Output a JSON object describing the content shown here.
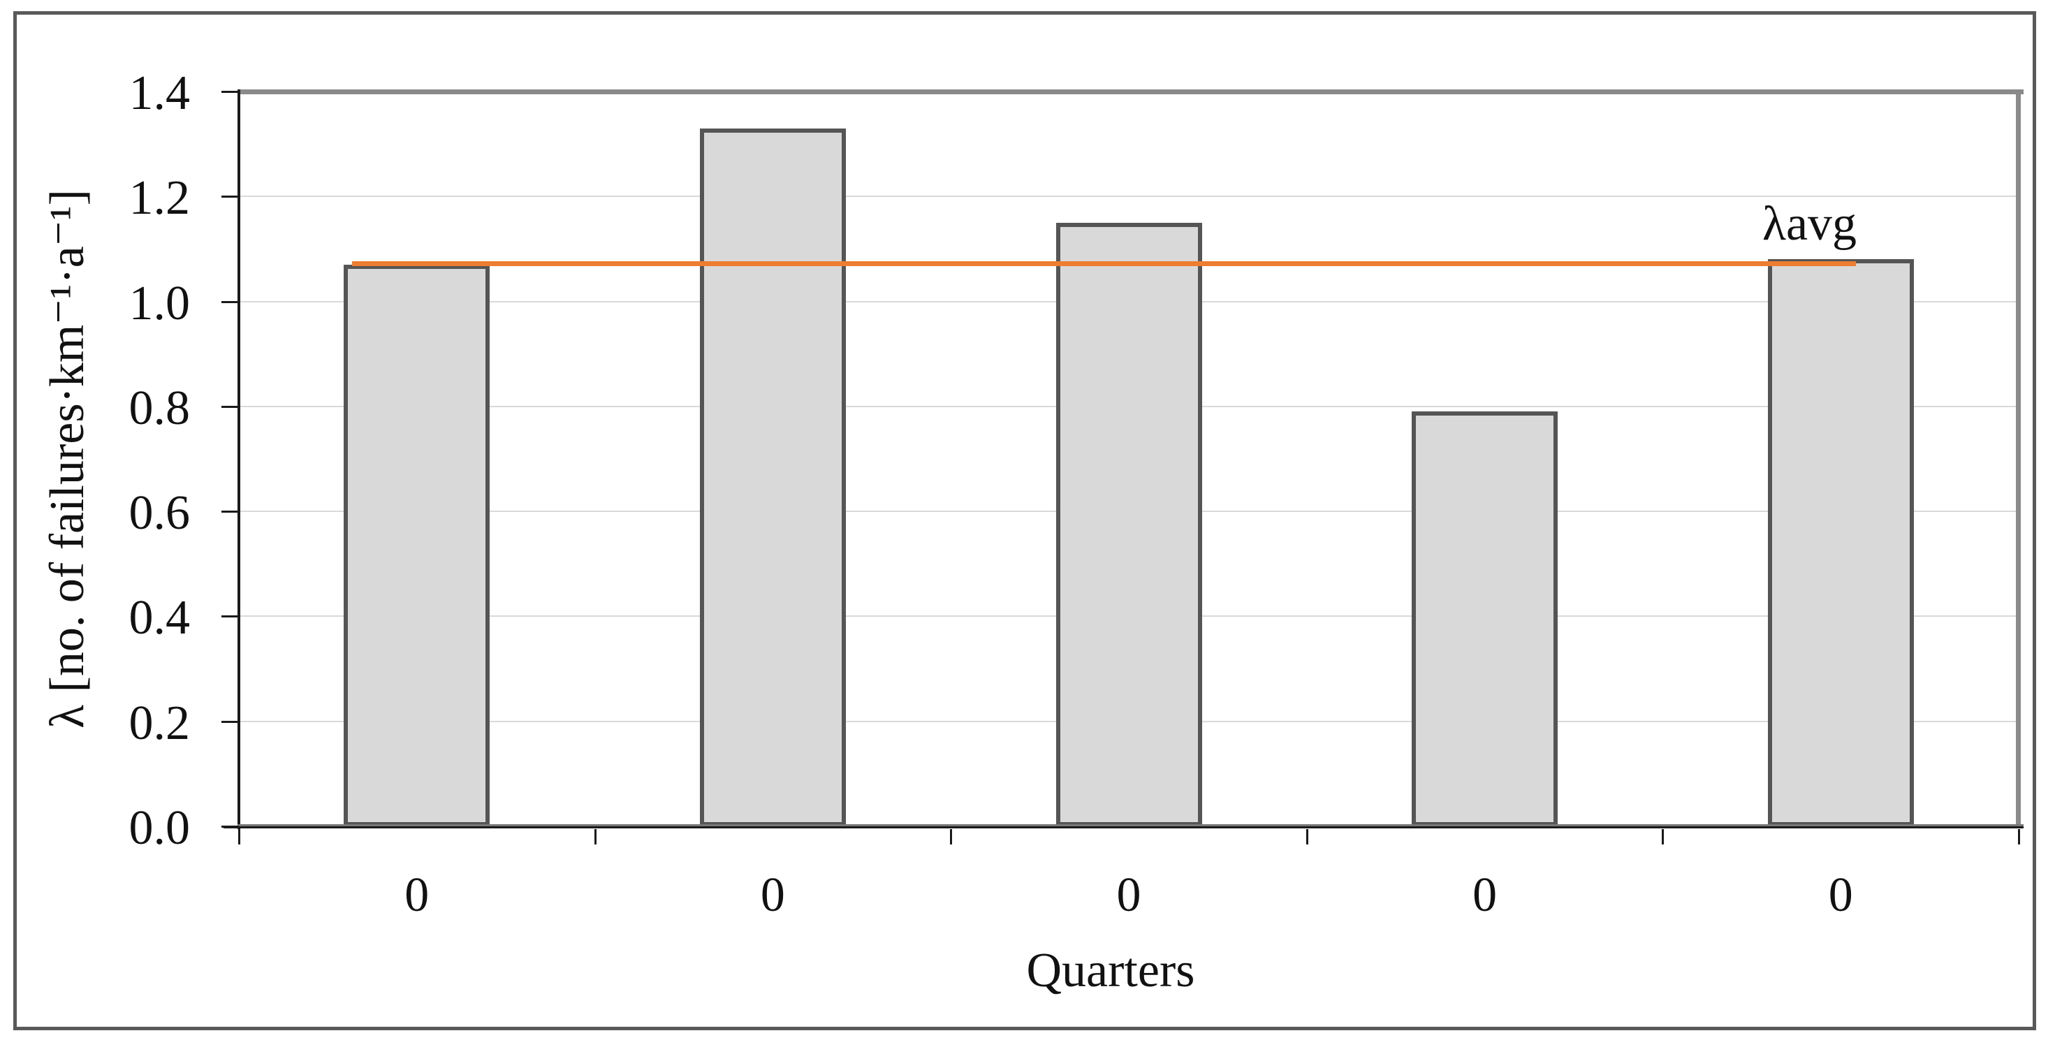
{
  "figure": {
    "background": "#ffffff",
    "outer_border_color": "#595959",
    "plot_border_color": "#8a8a8a",
    "axis_color": "#1a1a1a",
    "gridline_color": "#d9d9d9"
  },
  "chart_data": {
    "type": "bar",
    "title": "",
    "xlabel": "Quarters",
    "ylabel": "λ [no. of failures·km⁻¹·a⁻¹]",
    "categories": [
      "0",
      "0",
      "0",
      "0",
      "0"
    ],
    "values": [
      1.07,
      1.33,
      1.15,
      0.79,
      1.08
    ],
    "ylim": [
      0,
      1.4
    ],
    "ytick_step": 0.2,
    "ytick_labels": [
      "0.0",
      "0.2",
      "0.4",
      "0.6",
      "0.8",
      "1.0",
      "1.2",
      "1.4"
    ],
    "grid": "horizontal-light",
    "legend": "none",
    "bar_fill": "#d9d9d9",
    "bar_border": "#555555",
    "avg_line": {
      "label": "λavg",
      "value": 1.073,
      "color": "#ed7d31"
    }
  }
}
